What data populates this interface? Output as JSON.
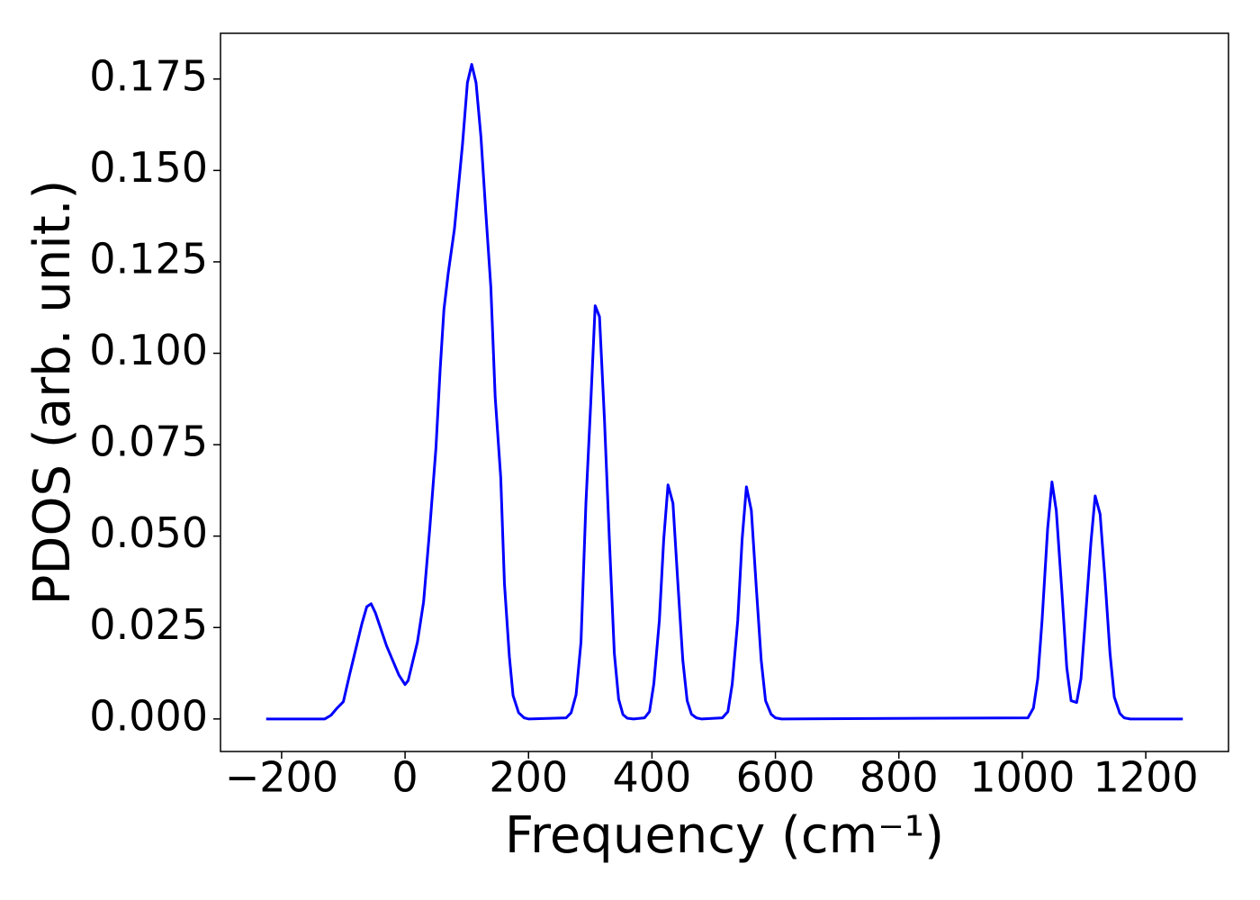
{
  "chart_data": {
    "type": "line",
    "xlabel": "Frequency (cm⁻¹)",
    "ylabel": "PDOS (arb. unit.)",
    "x": [
      -225,
      -130,
      -120,
      -110,
      -100,
      -90,
      -80,
      -70,
      -62,
      -55,
      -48,
      -40,
      -30,
      -20,
      -10,
      0,
      5,
      10,
      20,
      30,
      40,
      50,
      57,
      63,
      70,
      80,
      93,
      101,
      108,
      115,
      123,
      131,
      139,
      146,
      155,
      161,
      169,
      175,
      184,
      193,
      200,
      261,
      269,
      277,
      285,
      293,
      301,
      308,
      315,
      323,
      331,
      339,
      346,
      353,
      360,
      370,
      388,
      396,
      403,
      412,
      419,
      426,
      434,
      442,
      450,
      457,
      464,
      472,
      480,
      514,
      523,
      530,
      539,
      546,
      553,
      561,
      569,
      577,
      584,
      593,
      600,
      610,
      1009,
      1018,
      1025,
      1032,
      1041,
      1048,
      1055,
      1064,
      1072,
      1079,
      1088,
      1095,
      1102,
      1111,
      1118,
      1126,
      1134,
      1142,
      1149,
      1158,
      1165,
      1175,
      1260
    ],
    "values": [
      0,
      0,
      0.001,
      0.003,
      0.0047,
      0.012,
      0.019,
      0.026,
      0.0307,
      0.0315,
      0.029,
      0.025,
      0.02,
      0.016,
      0.012,
      0.0094,
      0.0105,
      0.014,
      0.021,
      0.032,
      0.052,
      0.074,
      0.096,
      0.112,
      0.122,
      0.134,
      0.157,
      0.174,
      0.179,
      0.174,
      0.159,
      0.138,
      0.118,
      0.088,
      0.066,
      0.037,
      0.017,
      0.0064,
      0.0017,
      0.0003,
      0,
      0.0003,
      0.0017,
      0.0066,
      0.021,
      0.059,
      0.087,
      0.113,
      0.11,
      0.082,
      0.049,
      0.018,
      0.0054,
      0.0012,
      0.0002,
      0,
      0.0003,
      0.002,
      0.0096,
      0.027,
      0.049,
      0.064,
      0.059,
      0.037,
      0.016,
      0.005,
      0.0013,
      0.0003,
      0,
      0.0003,
      0.002,
      0.0095,
      0.027,
      0.049,
      0.0635,
      0.057,
      0.036,
      0.016,
      0.005,
      0.0013,
      0.0003,
      0,
      0.0003,
      0.003,
      0.011,
      0.027,
      0.052,
      0.0648,
      0.057,
      0.035,
      0.014,
      0.005,
      0.0045,
      0.011,
      0.027,
      0.048,
      0.061,
      0.056,
      0.038,
      0.018,
      0.006,
      0.0015,
      0.0003,
      0,
      0
    ],
    "color": "#0000ff",
    "xlim": [
      -299,
      1334
    ],
    "ylim": [
      -0.0089,
      0.1875
    ],
    "xticks": [
      {
        "value": -200,
        "label": "−200"
      },
      0,
      200,
      400,
      600,
      800,
      1000,
      1200
    ],
    "yticks": [
      {
        "value": 0,
        "label": "0.000"
      },
      {
        "value": 0.025,
        "label": "0.025"
      },
      {
        "value": 0.05,
        "label": "0.050"
      },
      {
        "value": 0.075,
        "label": "0.075"
      },
      {
        "value": 0.1,
        "label": "0.100"
      },
      {
        "value": 0.125,
        "label": "0.125"
      },
      {
        "value": 0.15,
        "label": "0.150"
      },
      {
        "value": 0.175,
        "label": "0.175"
      }
    ]
  }
}
